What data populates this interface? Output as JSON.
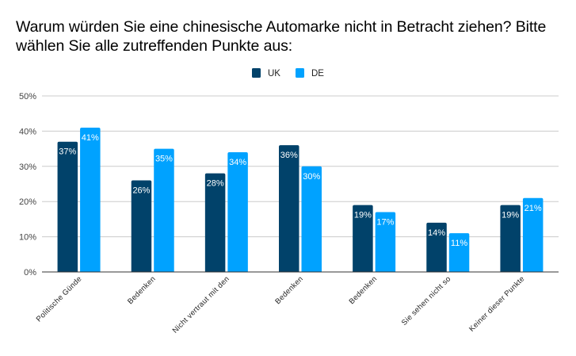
{
  "chart_data": {
    "type": "bar",
    "title": "Warum würden Sie eine chinesische Automarke nicht in Betracht ziehen? Bitte wählen Sie alle zutreffenden Punkte aus:",
    "title_lines": [
      "Warum würden Sie eine chinesische Automarke nicht in Betracht ziehen? Bitte",
      "wählen Sie alle zutreffenden Punkte aus:"
    ],
    "xlabel": "",
    "ylabel": "",
    "ylim": [
      0,
      50
    ],
    "yticks": [
      0,
      10,
      20,
      30,
      40,
      50
    ],
    "ytick_labels": [
      "0%",
      "10%",
      "20%",
      "30%",
      "40%",
      "50%"
    ],
    "grid": true,
    "legend_position": "top-center",
    "categories": [
      "Politische Günde",
      "Bedenken",
      "Nicht vertraut mit den",
      "Bedenken",
      "Bedenken",
      "Sie sehen nicht so",
      "Keiner dieser Punkte"
    ],
    "series": [
      {
        "name": "UK",
        "color": "#01426a",
        "values": [
          37,
          26,
          28,
          36,
          19,
          14,
          19
        ],
        "labels": [
          "37%",
          "26%",
          "28%",
          "36%",
          "19%",
          "14%",
          "19%"
        ]
      },
      {
        "name": "DE",
        "color": "#00a2ff",
        "values": [
          41,
          35,
          34,
          30,
          17,
          11,
          21
        ],
        "labels": [
          "41%",
          "35%",
          "34%",
          "30%",
          "17%",
          "11%",
          "21%"
        ]
      }
    ]
  }
}
